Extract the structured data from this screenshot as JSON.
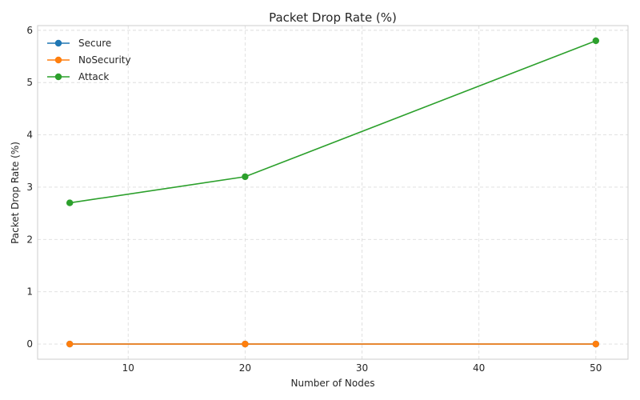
{
  "chart_data": {
    "type": "line",
    "title": "Packet Drop Rate (%)",
    "xlabel": "Number of Nodes",
    "ylabel": "Packet Drop Rate (%)",
    "x": [
      5,
      20,
      50
    ],
    "xlim": [
      2.25,
      52.75
    ],
    "ylim": [
      -0.29,
      6.09
    ],
    "x_ticks": [
      10,
      20,
      30,
      40,
      50
    ],
    "y_ticks": [
      0,
      1,
      2,
      3,
      4,
      5,
      6
    ],
    "grid": true,
    "legend_position": "top-left",
    "series": [
      {
        "name": "Secure",
        "color": "#1f77b4",
        "values": [
          0,
          0,
          0
        ]
      },
      {
        "name": "NoSecurity",
        "color": "#ff7f0e",
        "values": [
          0,
          0,
          0
        ]
      },
      {
        "name": "Attack",
        "color": "#2ca02c",
        "values": [
          2.7,
          3.2,
          5.8
        ]
      }
    ]
  }
}
